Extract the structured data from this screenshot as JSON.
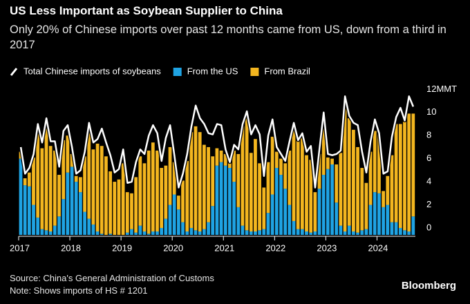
{
  "chart_data": {
    "type": "bar",
    "stacked": true,
    "title": "US Less Important as Soybean Supplier to China",
    "subtitle": "Only 20% of Chinese imports over past 12 months came from US, down from a third in 2017",
    "source": "Source: China's General Administration of Customs",
    "note": "Note: Shows imports of HS # 1201",
    "brand": "Bloomberg",
    "categories": [
      "2017",
      null,
      null,
      null,
      null,
      null,
      null,
      null,
      null,
      null,
      null,
      null,
      "2018",
      null,
      null,
      null,
      null,
      null,
      null,
      null,
      null,
      null,
      null,
      null,
      "2019",
      null,
      null,
      null,
      null,
      null,
      null,
      null,
      null,
      null,
      null,
      null,
      "2020",
      null,
      null,
      null,
      null,
      null,
      null,
      null,
      null,
      null,
      null,
      null,
      "2021",
      null,
      null,
      null,
      null,
      null,
      null,
      null,
      null,
      null,
      null,
      null,
      "2022",
      null,
      null,
      null,
      null,
      null,
      null,
      null,
      null,
      null,
      null,
      null,
      "2023",
      null,
      null,
      null,
      null,
      null,
      null,
      null,
      null,
      null,
      null,
      null,
      "2024",
      null,
      null,
      null,
      null,
      null,
      null,
      null,
      null
    ],
    "series": [
      {
        "name": "Total Chinese imports of soybeans",
        "type": "line",
        "color": "#ffffff",
        "values": [
          7.6,
          5.3,
          5.8,
          7.0,
          9.6,
          8.0,
          10.1,
          8.1,
          8.1,
          5.9,
          9.0,
          9.5,
          7.6,
          5.3,
          5.6,
          7.2,
          9.7,
          8.0,
          8.3,
          9.2,
          8.0,
          6.9,
          5.4,
          5.7,
          7.4,
          4.5,
          4.6,
          6.3,
          7.4,
          7.0,
          8.6,
          9.5,
          8.8,
          6.4,
          8.4,
          9.5,
          6.9,
          4.1,
          5.3,
          7.0,
          9.4,
          11.2,
          10.1,
          9.6,
          8.8,
          8.7,
          9.6,
          9.5,
          7.4,
          6.3,
          7.8,
          7.4,
          9.6,
          10.7,
          8.7,
          9.5,
          8.7,
          5.1,
          8.6,
          10.0,
          7.6,
          7.0,
          6.4,
          8.1,
          9.7,
          8.2,
          8.8,
          7.2,
          7.7,
          4.1,
          7.4,
          10.6,
          7.0,
          6.9,
          7.0,
          7.3,
          12.0,
          10.3,
          9.7,
          9.5,
          7.2,
          5.4,
          8.1,
          10.0,
          8.8,
          5.3,
          5.5,
          8.5,
          10.2,
          11.0,
          9.9,
          12.0,
          11.1
        ]
      },
      {
        "name": "From the US",
        "type": "bar",
        "color": "#1fa3e3",
        "values": [
          6.6,
          4.3,
          4.2,
          2.6,
          1.5,
          0.5,
          0.4,
          0.3,
          0.8,
          1.6,
          3.1,
          5.4,
          5.9,
          4.6,
          3.7,
          2.0,
          1.4,
          0.9,
          0.3,
          0.1,
          0.0,
          0.1,
          0.0,
          0.0,
          0.0,
          0.2,
          0.5,
          0.2,
          0.8,
          0.3,
          0.1,
          0.3,
          0.3,
          0.6,
          1.4,
          2.6,
          3.5,
          2.2,
          1.1,
          0.3,
          0.6,
          0.4,
          0.3,
          0.5,
          1.1,
          2.5,
          6.0,
          6.3,
          6.0,
          5.8,
          4.6,
          2.4,
          0.8,
          0.4,
          0.3,
          0.3,
          0.4,
          0.5,
          1.9,
          3.5,
          5.8,
          5.2,
          4.0,
          2.6,
          1.2,
          0.5,
          0.5,
          0.3,
          0.2,
          0.3,
          4.0,
          5.2,
          5.7,
          6.1,
          2.8,
          0.8,
          0.3,
          0.8,
          0.3,
          0.2,
          0.4,
          0.5,
          2.6,
          3.7,
          3.6,
          2.4,
          2.6,
          1.1,
          1.1,
          0.6,
          0.4,
          0.3,
          1.6
        ]
      },
      {
        "name": "From Brazil",
        "type": "bar",
        "color": "#f3b61f",
        "values": [
          0.6,
          0.6,
          1.2,
          4.1,
          7.4,
          7.0,
          8.8,
          7.4,
          6.5,
          3.6,
          5.1,
          3.2,
          1.1,
          0.5,
          1.3,
          4.8,
          7.9,
          6.5,
          7.6,
          7.6,
          6.8,
          5.4,
          4.6,
          4.8,
          6.2,
          3.5,
          3.1,
          4.8,
          6.0,
          5.9,
          7.2,
          7.7,
          7.0,
          5.2,
          4.6,
          5.0,
          2.8,
          1.2,
          3.6,
          6.1,
          8.3,
          9.0,
          8.6,
          7.3,
          6.5,
          4.3,
          1.5,
          1.0,
          1.0,
          0.4,
          2.7,
          4.6,
          8.6,
          9.8,
          6.8,
          8.0,
          5.8,
          3.6,
          4.4,
          5.0,
          1.4,
          1.4,
          2.2,
          4.7,
          8.2,
          7.8,
          7.9,
          6.6,
          6.3,
          3.4,
          3.0,
          4.3,
          1.0,
          0.5,
          3.3,
          6.3,
          11.2,
          9.3,
          8.8,
          7.4,
          5.4,
          4.0,
          4.6,
          5.3,
          5.1,
          1.4,
          2.5,
          5.8,
          8.5,
          9.0,
          9.4,
          10.2,
          8.9
        ]
      }
    ],
    "ylim": [
      0,
      12.2
    ],
    "yticks": [
      0,
      2,
      4,
      6,
      8,
      10,
      {
        "value": 12,
        "label": "12MMT"
      }
    ],
    "grid": false
  }
}
